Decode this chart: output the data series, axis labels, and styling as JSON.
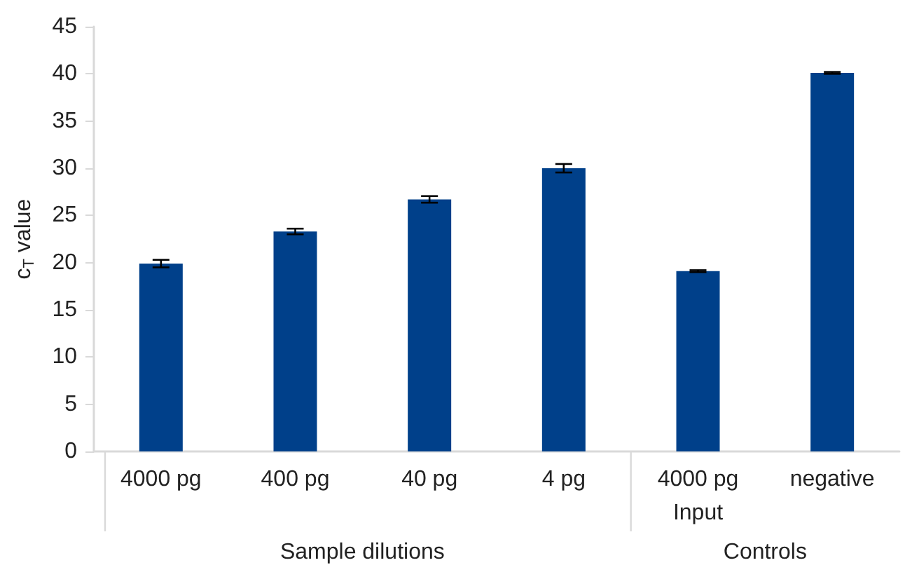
{
  "chart_data": {
    "type": "bar",
    "ylabel": "c$_{T}$ value",
    "categories": [
      "4000 pg",
      "400 pg",
      "40 pg",
      "4 pg",
      "4000 pg\nInput",
      "negative"
    ],
    "values": [
      19.9,
      23.3,
      26.7,
      30.0,
      19.1,
      40.1
    ],
    "errors": [
      0.4,
      0.3,
      0.35,
      0.45,
      0.1,
      0.1
    ],
    "color": "#00408a",
    "ylim": [
      0,
      45
    ],
    "yticks": [
      0,
      5,
      10,
      15,
      20,
      25,
      30,
      35,
      40,
      45
    ],
    "grid": false,
    "annotations": [
      "Sample dilutions",
      "Controls"
    ]
  }
}
